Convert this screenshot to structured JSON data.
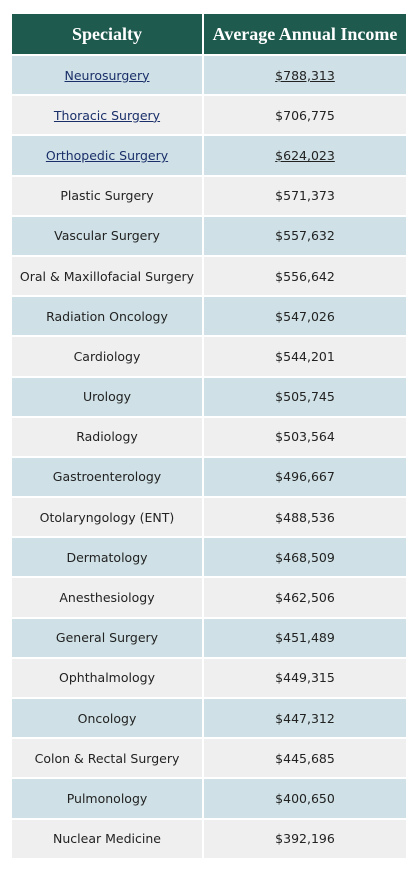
{
  "table": {
    "header": [
      "Specialty",
      "Average Annual Income"
    ],
    "rows": [
      [
        "Neurosurgery",
        "$788,313"
      ],
      [
        "Thoracic Surgery",
        "$706,775"
      ],
      [
        "Orthopedic Surgery",
        "$624,023"
      ],
      [
        "Plastic Surgery",
        "$571,373"
      ],
      [
        "Vascular Surgery",
        "$557,632"
      ],
      [
        "Oral & Maxillofacial Surgery",
        "$556,642"
      ],
      [
        "Radiation Oncology",
        "$547,026"
      ],
      [
        "Cardiology",
        "$544,201"
      ],
      [
        "Urology",
        "$505,745"
      ],
      [
        "Radiology",
        "$503,564"
      ],
      [
        "Gastroenterology",
        "$496,667"
      ],
      [
        "Otolaryngology (ENT)",
        "$488,536"
      ],
      [
        "Dermatology",
        "$468,509"
      ],
      [
        "Anesthesiology",
        "$462,506"
      ],
      [
        "General Surgery",
        "$451,489"
      ],
      [
        "Ophthalmology",
        "$449,315"
      ],
      [
        "Oncology",
        "$447,312"
      ],
      [
        "Colon & Rectal Surgery",
        "$445,685"
      ],
      [
        "Pulmonology",
        "$400,650"
      ],
      [
        "Nuclear Medicine",
        "$392,196"
      ]
    ]
  }
}
